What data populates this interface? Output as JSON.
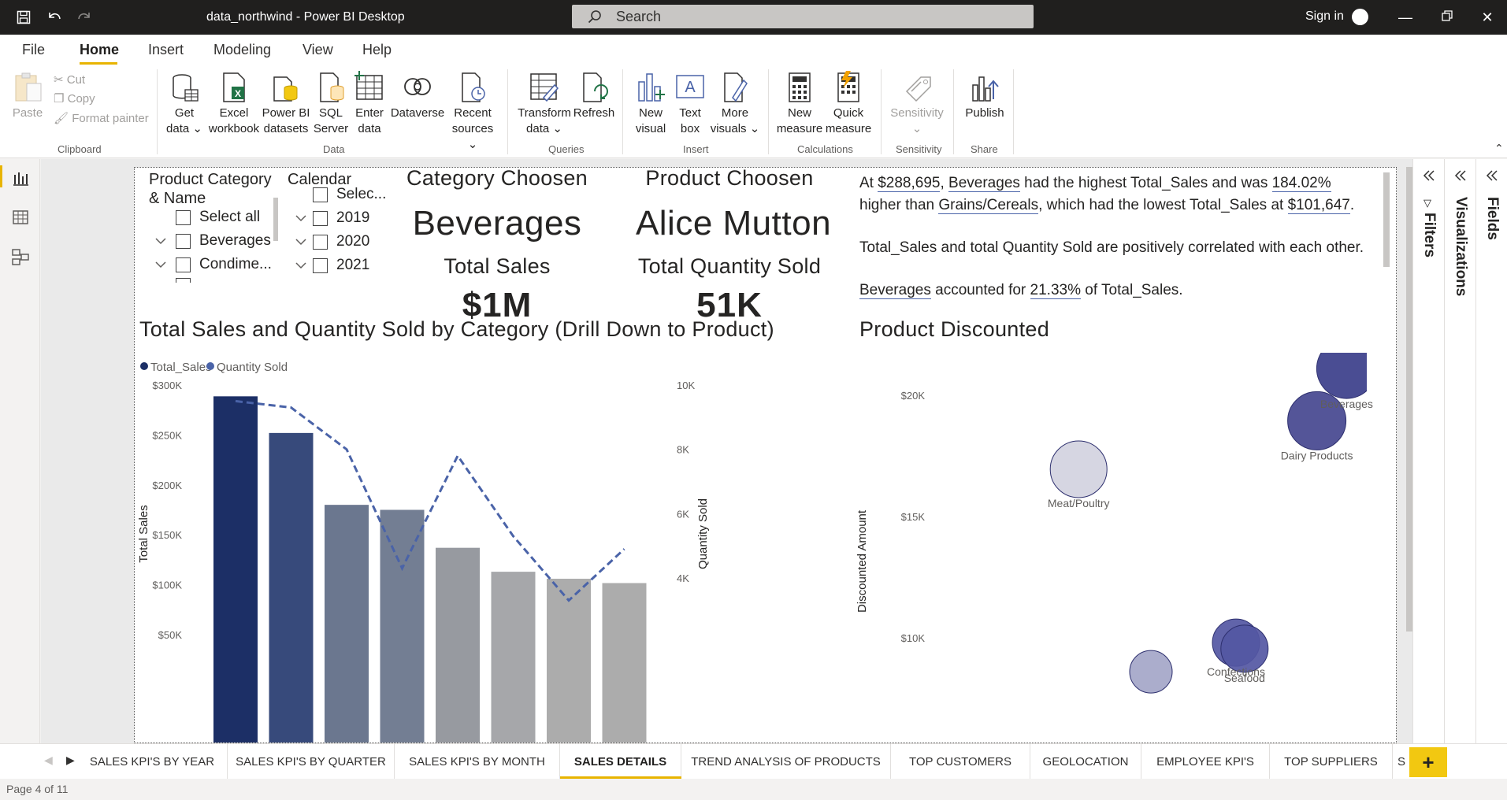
{
  "window": {
    "title": "data_northwind - Power BI Desktop",
    "search_placeholder": "Search",
    "sign_in": "Sign in"
  },
  "menu": [
    "File",
    "Home",
    "Insert",
    "Modeling",
    "View",
    "Help"
  ],
  "ribbon": {
    "clipboard": {
      "paste": "Paste",
      "cut": "Cut",
      "copy": "Copy",
      "format_painter": "Format painter",
      "group": "Clipboard"
    },
    "data": {
      "get_data": [
        "Get",
        "data"
      ],
      "excel": [
        "Excel",
        "workbook"
      ],
      "pbi_datasets": [
        "Power BI",
        "datasets"
      ],
      "sql": [
        "SQL",
        "Server"
      ],
      "enter": [
        "Enter",
        "data"
      ],
      "dataverse": [
        "Dataverse",
        ""
      ],
      "recent": [
        "Recent",
        "sources"
      ],
      "group": "Data"
    },
    "queries": {
      "transform": [
        "Transform",
        "data"
      ],
      "refresh": [
        "Refresh",
        ""
      ],
      "group": "Queries"
    },
    "insert": {
      "new_visual": [
        "New",
        "visual"
      ],
      "text_box": [
        "Text",
        "box"
      ],
      "more_visuals": [
        "More",
        "visuals"
      ],
      "group": "Insert"
    },
    "calculations": {
      "new_measure": [
        "New",
        "measure"
      ],
      "quick_measure": [
        "Quick",
        "measure"
      ],
      "group": "Calculations"
    },
    "sensitivity": {
      "label": "Sensitivity",
      "group": "Sensitivity"
    },
    "share": {
      "publish": "Publish",
      "group": "Share"
    }
  },
  "slicers": {
    "category": {
      "title": [
        "Product Category",
        "& Name"
      ],
      "items": [
        "Select all",
        "Beverages",
        "Condime..."
      ]
    },
    "calendar": {
      "title": "Calendar",
      "items": [
        "Selec...",
        "2019",
        "2020",
        "2021"
      ]
    }
  },
  "cards": {
    "category_title": "Category Choosen",
    "category_value": "Beverages",
    "product_title": "Product Choosen",
    "product_value": "Alice Mutton",
    "sales_title": "Total Sales",
    "sales_value": "$1M",
    "qty_title": "Total Quantity Sold",
    "qty_value": "51K"
  },
  "narrative": {
    "p1": {
      "t1": "At ",
      "sales": "$288,695",
      "t2": ", ",
      "cat": "Beverages",
      "t3": " had the highest Total_Sales and was ",
      "pct": "184.02%",
      "t4": " higher than ",
      "low": "Grains/Cereals",
      "t5": ", which had the lowest Total_Sales at ",
      "lowval": "$101,647",
      "t6": "."
    },
    "p2": "Total_Sales and total Quantity Sold are positively correlated with each other.",
    "p3": {
      "cat": "Beverages",
      "t1": " accounted for ",
      "pct": "21.33%",
      "t2": " of Total_Sales."
    }
  },
  "combo_chart": {
    "title": "Total Sales and Quantity Sold by Category (Drill Down to Product)",
    "legend": [
      "Total_Sales",
      "Quantity Sold"
    ],
    "ylabel_left": "Total Sales",
    "ylabel_right": "Quantity Sold",
    "left_ticks": [
      "$300K",
      "$250K",
      "$200K",
      "$150K",
      "$100K",
      "$50K"
    ],
    "right_ticks": [
      "10K",
      "8K",
      "6K",
      "4K"
    ]
  },
  "bubble_chart": {
    "title": "Product Discounted",
    "ylabel": "Discounted Amount",
    "ticks": [
      "$20K",
      "$15K",
      "$10K"
    ]
  },
  "chart_data": [
    {
      "type": "bar",
      "title": "Total Sales and Quantity Sold by Category (Drill Down to Product)",
      "ylabel": "Total Sales",
      "y2label": "Quantity Sold",
      "ylim": [
        40000,
        300000
      ],
      "y2lim": [
        3000,
        10000
      ],
      "series": [
        {
          "name": "Total_Sales",
          "type": "bar",
          "values": [
            288695,
            252000,
            180000,
            175000,
            137000,
            113000,
            106000,
            101647
          ]
        },
        {
          "name": "Quantity Sold",
          "type": "line",
          "values": [
            9500,
            9300,
            8000,
            4300,
            7800,
            5300,
            3300,
            4900
          ]
        }
      ],
      "bar_colors": [
        "#1c2f66",
        "#374a7b",
        "#6b778f",
        "#737e93",
        "#979aa0",
        "#a6a7aa",
        "#acacac",
        "#acacac"
      ],
      "line_color": "#4a63a8"
    },
    {
      "type": "scatter",
      "title": "Product Discounted",
      "ylabel": "Discounted Amount",
      "ylim": [
        8500,
        21500
      ],
      "x_range": [
        0,
        100
      ],
      "points": [
        {
          "label": "Beverages",
          "x": 96,
          "y": 21100,
          "r": 38,
          "color": "#3b3e8a"
        },
        {
          "label": "Dairy Products",
          "x": 89,
          "y": 18950,
          "r": 37,
          "color": "#45478f"
        },
        {
          "label": "Meat/Poultry",
          "x": 33,
          "y": 16950,
          "r": 36,
          "color": "#d2d3e0"
        },
        {
          "label": "Confections",
          "x": 70,
          "y": 9800,
          "r": 30,
          "color": "#5457a3"
        },
        {
          "label": "Seafood",
          "x": 72,
          "y": 9550,
          "r": 30,
          "color": "#5457a3"
        },
        {
          "label": "",
          "x": 50,
          "y": 8600,
          "r": 27,
          "color": "#a4a6c8"
        }
      ]
    }
  ],
  "tabs": [
    "SALES KPI'S BY YEAR",
    "SALES KPI'S BY QUARTER",
    "SALES KPI'S BY MONTH",
    "SALES DETAILS",
    "TREND ANALYSIS OF PRODUCTS",
    "TOP CUSTOMERS",
    "GEOLOCATION",
    "EMPLOYEE KPI'S",
    "TOP SUPPLIERS",
    "S"
  ],
  "active_tab": 3,
  "status": "Page 4 of 11",
  "right_panels": [
    "Filters",
    "Visualizations",
    "Fields"
  ]
}
